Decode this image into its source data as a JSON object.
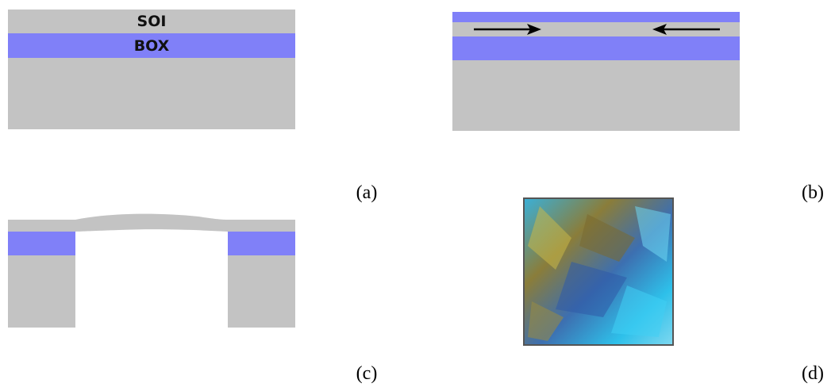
{
  "panels": [
    {
      "label": "(a)",
      "layers": [
        "SOI",
        "BOX"
      ]
    },
    {
      "label": "(b)"
    },
    {
      "label": "(c)"
    },
    {
      "label": "(d)"
    }
  ]
}
